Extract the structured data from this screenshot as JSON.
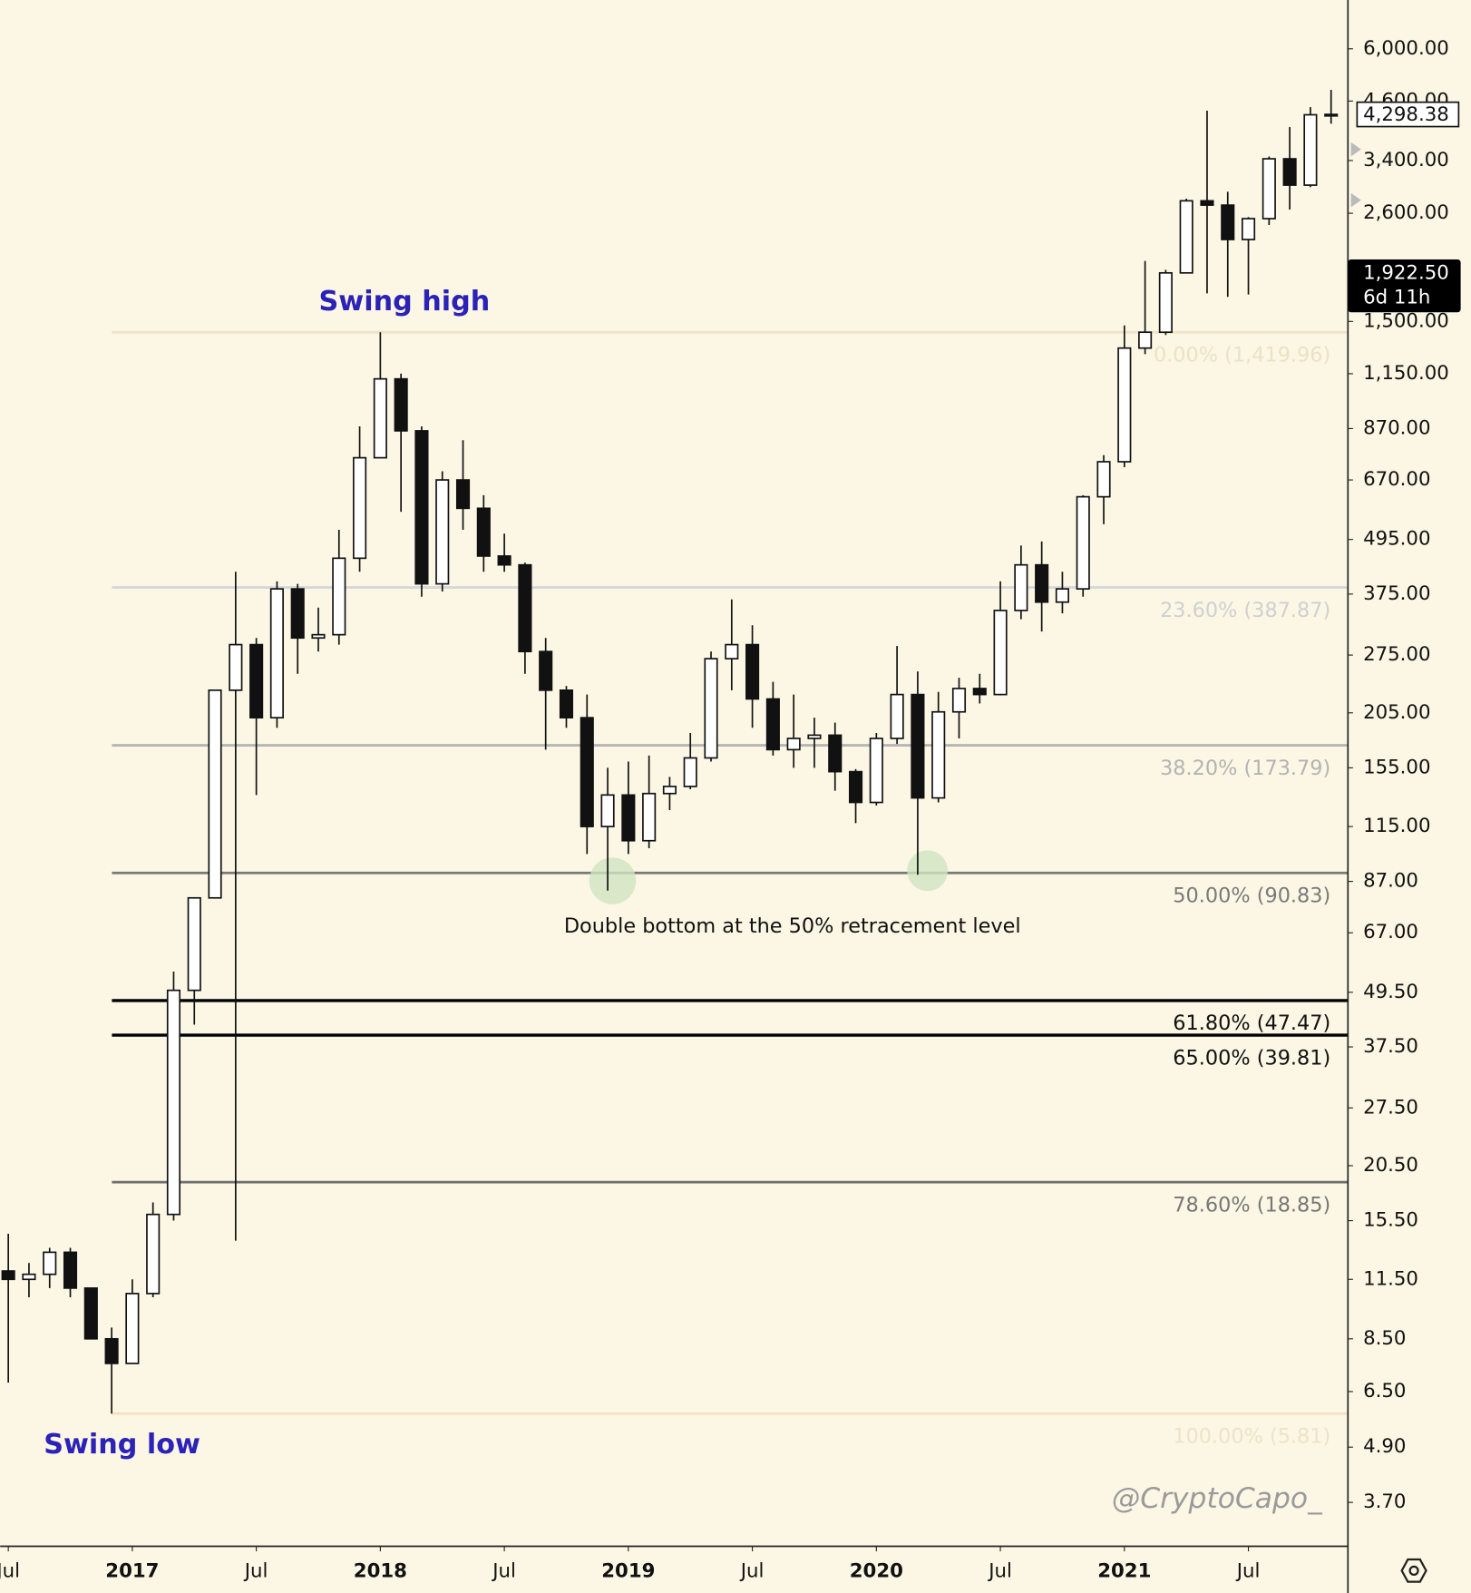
{
  "chart_data": {
    "type": "candlestick",
    "log_scale": true,
    "x": [
      "2016-07",
      "2016-08",
      "2016-09",
      "2016-10",
      "2016-11",
      "2016-12",
      "2017-01",
      "2017-02",
      "2017-03",
      "2017-04",
      "2017-05",
      "2017-06",
      "2017-07",
      "2017-08",
      "2017-09",
      "2017-10",
      "2017-11",
      "2017-12",
      "2018-01",
      "2018-02",
      "2018-03",
      "2018-04",
      "2018-05",
      "2018-06",
      "2018-07",
      "2018-08",
      "2018-09",
      "2018-10",
      "2018-11",
      "2018-12",
      "2019-01",
      "2019-02",
      "2019-03",
      "2019-04",
      "2019-05",
      "2019-06",
      "2019-07",
      "2019-08",
      "2019-09",
      "2019-10",
      "2019-11",
      "2019-12",
      "2020-01",
      "2020-02",
      "2020-03",
      "2020-04",
      "2020-05",
      "2020-06",
      "2020-07",
      "2020-08",
      "2020-09",
      "2020-10",
      "2020-11",
      "2020-12",
      "2021-01",
      "2021-02",
      "2021-03",
      "2021-04",
      "2021-05",
      "2021-06",
      "2021-07",
      "2021-08",
      "2021-09",
      "2021-10",
      "2021-11"
    ],
    "open": [
      12,
      11.5,
      11.8,
      13.2,
      11,
      8.5,
      7.5,
      10.7,
      16,
      50,
      80,
      230,
      290,
      200,
      385,
      300,
      305,
      450,
      750,
      1120,
      860,
      395,
      670,
      580,
      455,
      435,
      280,
      230,
      200,
      115,
      135,
      107,
      136,
      141,
      163,
      270,
      290,
      220,
      170,
      180,
      183,
      152,
      130,
      180,
      225,
      133,
      206,
      232,
      225,
      345,
      435,
      360,
      385,
      615,
      735,
      1310,
      1420,
      1920,
      2770,
      2710,
      2275,
      2530,
      3430,
      3000,
      4290
    ],
    "high": [
      14.5,
      12.5,
      13.5,
      13.5,
      11,
      9,
      11.5,
      17,
      55,
      80,
      230,
      420,
      300,
      400,
      395,
      350,
      520,
      880,
      1419.96,
      1150,
      880,
      700,
      820,
      620,
      510,
      440,
      300,
      235,
      225,
      155,
      160,
      165,
      148,
      185,
      280,
      365,
      320,
      240,
      225,
      200,
      195,
      154,
      185,
      288,
      253,
      228,
      245,
      250,
      400,
      480,
      490,
      420,
      620,
      760,
      1470,
      2040,
      1950,
      2800,
      4380,
      2900,
      2550,
      3470,
      4030,
      4460,
      4870
    ],
    "low": [
      6.8,
      10.5,
      11,
      10.5,
      8.5,
      5.81,
      7.5,
      10.5,
      15.5,
      42,
      80,
      14,
      135,
      190,
      250,
      280,
      290,
      420,
      750,
      570,
      370,
      380,
      520,
      420,
      420,
      250,
      170,
      190,
      100,
      83,
      100,
      103,
      125,
      139,
      160,
      230,
      190,
      165,
      155,
      155,
      138,
      117,
      128,
      175,
      90,
      130,
      180,
      215,
      224,
      330,
      310,
      340,
      370,
      535,
      715,
      1270,
      1400,
      1920,
      1730,
      1700,
      1720,
      2450,
      2650,
      2970,
      4100
    ],
    "close": [
      11.5,
      11.8,
      13.2,
      11,
      8.5,
      7.5,
      10.7,
      16,
      50,
      80,
      230,
      290,
      200,
      385,
      300,
      305,
      450,
      750,
      1120,
      860,
      395,
      670,
      580,
      455,
      435,
      280,
      230,
      200,
      115,
      135,
      107,
      136,
      141,
      163,
      270,
      290,
      220,
      170,
      180,
      183,
      152,
      130,
      180,
      225,
      133,
      206,
      232,
      225,
      345,
      435,
      360,
      385,
      615,
      735,
      1310,
      1420,
      1920,
      2770,
      2710,
      2275,
      2530,
      3430,
      3000,
      4290,
      4298.38
    ],
    "ylim": [
      2.96,
      7690
    ],
    "yticks": [
      {
        "value": 6000,
        "label": "6,000.00"
      },
      {
        "value": 4600,
        "label": "4,600.00"
      },
      {
        "value": 3400,
        "label": "3,400.00"
      },
      {
        "value": 2600,
        "label": "2,600.00"
      },
      {
        "value": 1500,
        "label": "1,500.00"
      },
      {
        "value": 1150,
        "label": "1,150.00"
      },
      {
        "value": 870,
        "label": "870.00"
      },
      {
        "value": 670,
        "label": "670.00"
      },
      {
        "value": 495,
        "label": "495.00"
      },
      {
        "value": 375,
        "label": "375.00"
      },
      {
        "value": 275,
        "label": "275.00"
      },
      {
        "value": 205,
        "label": "205.00"
      },
      {
        "value": 155,
        "label": "155.00"
      },
      {
        "value": 115,
        "label": "115.00"
      },
      {
        "value": 87,
        "label": "87.00"
      },
      {
        "value": 67,
        "label": "67.00"
      },
      {
        "value": 49.5,
        "label": "49.50"
      },
      {
        "value": 37.5,
        "label": "37.50"
      },
      {
        "value": 27.5,
        "label": "27.50"
      },
      {
        "value": 20.5,
        "label": "20.50"
      },
      {
        "value": 15.5,
        "label": "15.50"
      },
      {
        "value": 11.5,
        "label": "11.50"
      },
      {
        "value": 8.5,
        "label": "8.50"
      },
      {
        "value": 6.5,
        "label": "6.50"
      },
      {
        "value": 4.9,
        "label": "4.90"
      },
      {
        "value": 3.7,
        "label": "3.70"
      }
    ],
    "xticks": [
      {
        "value": "2016-07",
        "label": "Jul"
      },
      {
        "value": "2017-01",
        "label": "2017"
      },
      {
        "value": "2017-07",
        "label": "Jul"
      },
      {
        "value": "2018-01",
        "label": "2018"
      },
      {
        "value": "2018-07",
        "label": "Jul"
      },
      {
        "value": "2019-01",
        "label": "2019"
      },
      {
        "value": "2019-07",
        "label": "Jul"
      },
      {
        "value": "2020-01",
        "label": "2020"
      },
      {
        "value": "2020-07",
        "label": "Jul"
      },
      {
        "value": "2021-01",
        "label": "2021"
      },
      {
        "value": "2021-07",
        "label": "Jul"
      }
    ],
    "fib_levels": [
      {
        "label": "0.00% (1,419.96)",
        "value": 1419.96,
        "color": "#efe3c6",
        "text_color": "#ece1c5"
      },
      {
        "label": "23.60% (387.87)",
        "value": 387.87,
        "color": "#d5d7db",
        "text_color": "#cfd0d2"
      },
      {
        "label": "38.20% (173.79)",
        "value": 173.79,
        "color": "#b5b5b5",
        "text_color": "#b3b3b3"
      },
      {
        "label": "50.00% (90.83)",
        "value": 90.83,
        "color": "#787878",
        "text_color": "#7a7a7a"
      },
      {
        "label": "61.80% (47.47)",
        "value": 47.47,
        "color": "#000000",
        "text_color": "#111111"
      },
      {
        "label": "65.00% (39.81)",
        "value": 39.81,
        "color": "#000000",
        "text_color": "#111111"
      },
      {
        "label": "78.60% (18.85)",
        "value": 18.85,
        "color": "#6e6e6e",
        "text_color": "#777777"
      },
      {
        "label": "100.00% (5.81)",
        "value": 5.81,
        "color": "#f3e1c6",
        "text_color": "#efe2c8"
      }
    ],
    "last_price": {
      "value": 4298.38,
      "label": "4,298.38"
    },
    "countdown_price": {
      "value": 1922.5,
      "label": "1,922.50",
      "countdown": "6d 11h"
    },
    "annotations": {
      "swing_high": "Swing high",
      "swing_low": "Swing low",
      "double_bottom": "Double bottom at the 50% retracement level",
      "watermark": "@CryptoCapo_"
    }
  }
}
